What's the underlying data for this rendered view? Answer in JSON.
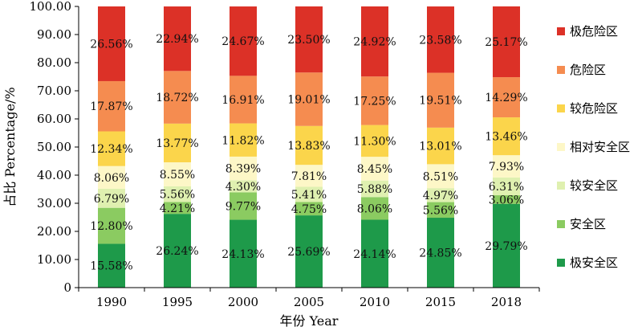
{
  "chart_data": {
    "type": "bar",
    "stacked": true,
    "xlabel": "年份 Year",
    "ylabel": "占比 Percentage/%",
    "ylim": [
      0,
      100
    ],
    "yticks": [
      "0",
      "10.00",
      "20.00",
      "30.00",
      "40.00",
      "50.00",
      "60.00",
      "70.00",
      "80.00",
      "90.00",
      "100.00"
    ],
    "categories": [
      "1990",
      "1995",
      "2000",
      "2005",
      "2010",
      "2015",
      "2018"
    ],
    "legend_position": "right",
    "series": [
      {
        "name": "极安全区",
        "color": "#1e9a4a",
        "values": [
          15.58,
          26.24,
          24.13,
          25.69,
          24.14,
          24.85,
          29.79
        ],
        "labels": [
          "15.58%",
          "26.24%",
          "24.13%",
          "25.69%",
          "24.14%",
          "24.85%",
          "29.79%"
        ]
      },
      {
        "name": "安全区",
        "color": "#8bcb61",
        "values": [
          12.8,
          4.21,
          9.77,
          4.75,
          8.06,
          5.56,
          3.06
        ],
        "labels": [
          "12.80%",
          "4.21%",
          "9.77%",
          "4.75%",
          "8.06%",
          "5.56%",
          "3.06%"
        ]
      },
      {
        "name": "较安全区",
        "color": "#dff0b0",
        "values": [
          6.79,
          5.56,
          4.3,
          5.41,
          5.88,
          4.97,
          6.31
        ],
        "labels": [
          "6.79%",
          "5.56%",
          "4.30%",
          "5.41%",
          "5.88%",
          "4.97%",
          "6.31%"
        ]
      },
      {
        "name": "相对安全区",
        "color": "#fdf7c7",
        "values": [
          8.06,
          8.55,
          8.39,
          7.81,
          8.45,
          8.51,
          7.93
        ],
        "labels": [
          "8.06%",
          "8.55%",
          "8.39%",
          "7.81%",
          "8.45%",
          "8.51%",
          "7.93%"
        ]
      },
      {
        "name": "较危险区",
        "color": "#fbd54b",
        "values": [
          12.34,
          13.77,
          11.82,
          13.83,
          11.3,
          13.01,
          13.46
        ],
        "labels": [
          "12.34%",
          "13.77%",
          "11.82%",
          "13.83%",
          "11.30%",
          "13.01%",
          "13.46%"
        ]
      },
      {
        "name": "危险区",
        "color": "#f58c50",
        "values": [
          17.87,
          18.72,
          16.91,
          19.01,
          17.25,
          19.51,
          14.29
        ],
        "labels": [
          "17.87%",
          "18.72%",
          "16.91%",
          "19.01%",
          "17.25%",
          "19.51%",
          "14.29%"
        ]
      },
      {
        "name": "极危险区",
        "color": "#dc3127",
        "values": [
          26.56,
          22.94,
          24.67,
          23.5,
          24.92,
          23.58,
          25.17
        ],
        "labels": [
          "26.56%",
          "22.94%",
          "24.67%",
          "23.50%",
          "24.92%",
          "23.58%",
          "25.17%"
        ]
      }
    ],
    "legend_order": [
      "极危险区",
      "危险区",
      "较危险区",
      "相对安全区",
      "较安全区",
      "安全区",
      "极安全区"
    ]
  }
}
